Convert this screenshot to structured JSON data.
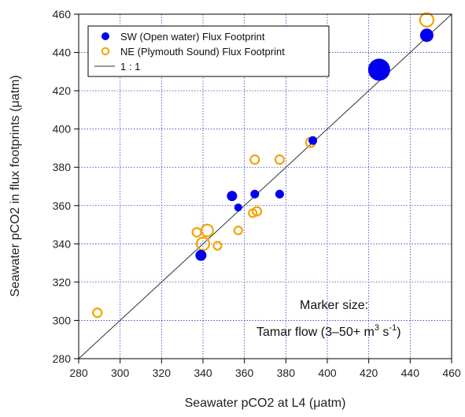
{
  "chart_data": {
    "type": "scatter",
    "xlabel": "Seawater pCO2 at L4 (μatm)",
    "ylabel": "Seawater pCO2 in flux footprints (μatm)",
    "xlim": [
      280,
      460
    ],
    "ylim": [
      280,
      460
    ],
    "x_ticks": [
      280,
      300,
      320,
      340,
      360,
      380,
      400,
      420,
      440,
      460
    ],
    "y_ticks": [
      280,
      300,
      320,
      340,
      360,
      380,
      400,
      420,
      440,
      460
    ],
    "grid": true,
    "legend_position": "top-left",
    "series": [
      {
        "name": "SW (Open water) Flux Footprint",
        "marker": "filled-circle",
        "color": "#0000ee",
        "points": [
          {
            "x": 339,
            "y": 334,
            "size": 14
          },
          {
            "x": 354,
            "y": 365,
            "size": 13
          },
          {
            "x": 357,
            "y": 359,
            "size": 10
          },
          {
            "x": 365,
            "y": 366,
            "size": 11
          },
          {
            "x": 377,
            "y": 366,
            "size": 11
          },
          {
            "x": 393,
            "y": 394,
            "size": 11
          },
          {
            "x": 425,
            "y": 431,
            "size": 28
          },
          {
            "x": 448,
            "y": 449,
            "size": 17
          }
        ]
      },
      {
        "name": "NE (Plymouth Sound) Flux Footprint",
        "marker": "open-circle",
        "color": "#f5a300",
        "points": [
          {
            "x": 289,
            "y": 304,
            "size": 11
          },
          {
            "x": 337,
            "y": 346,
            "size": 11
          },
          {
            "x": 340,
            "y": 340,
            "size": 16
          },
          {
            "x": 342,
            "y": 347,
            "size": 15
          },
          {
            "x": 347,
            "y": 339,
            "size": 10
          },
          {
            "x": 357,
            "y": 347,
            "size": 10
          },
          {
            "x": 364,
            "y": 356,
            "size": 10
          },
          {
            "x": 366,
            "y": 357,
            "size": 11
          },
          {
            "x": 365,
            "y": 384,
            "size": 11
          },
          {
            "x": 377,
            "y": 384,
            "size": 11
          },
          {
            "x": 392,
            "y": 393,
            "size": 12
          },
          {
            "x": 448,
            "y": 457,
            "size": 17
          }
        ]
      }
    ],
    "reference_line": {
      "name": "1 : 1",
      "color": "#333333",
      "from": [
        280,
        280
      ],
      "to": [
        460,
        460
      ]
    },
    "annotation": {
      "line1": "Marker size:",
      "line2": "Tamar flow (3–50+ m",
      "sup1": "3",
      "mid": " s",
      "sup2": "-1",
      "end": ")"
    }
  }
}
